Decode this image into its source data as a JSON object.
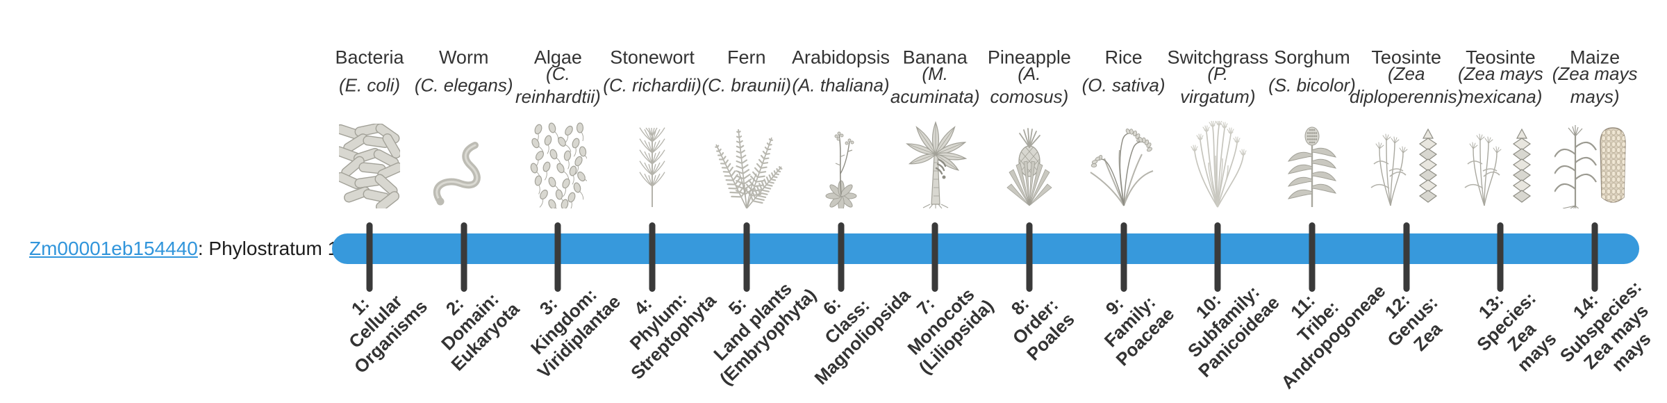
{
  "gene": {
    "id": "Zm00001eb154440",
    "suffix": ": Phylostratum 1"
  },
  "timeline": {
    "bar_color": "#3799DC",
    "tick_color": "#3A3A3A",
    "highlighted_phylostratum": "Phylostratum 1"
  },
  "columns": [
    {
      "common": "Bacteria",
      "scientific": "(E. coli)",
      "icon": "bacteria",
      "stratum": "1:\nCellular\nOrganisms"
    },
    {
      "common": "Worm",
      "scientific": "(C. elegans)",
      "icon": "worm",
      "stratum": "2:\nDomain:\nEukaryota"
    },
    {
      "common": "Algae",
      "scientific": "(C.\nreinhardtii)",
      "icon": "algae",
      "stratum": "3:\nKingdom:\nViridiplantae"
    },
    {
      "common": "Stonewort",
      "scientific": "(C. richardii)",
      "icon": "stonewort",
      "stratum": "4:\nPhylum:\nStreptophyta"
    },
    {
      "common": "Fern",
      "scientific": "(C. braunii)",
      "icon": "fern",
      "stratum": "5:\nLand plants\n(Embryophyta)"
    },
    {
      "common": "Arabidopsis",
      "scientific": "(A. thaliana)",
      "icon": "arabidopsis",
      "stratum": "6:\nClass:\nMagnoliopsida"
    },
    {
      "common": "Banana",
      "scientific": "(M.\nacuminata)",
      "icon": "banana",
      "stratum": "7:\nMonocots\n(Liliopsida)"
    },
    {
      "common": "Pineapple",
      "scientific": "(A.\ncomosus)",
      "icon": "pineapple",
      "stratum": "8:\nOrder:\nPoales"
    },
    {
      "common": "Rice",
      "scientific": "(O. sativa)",
      "icon": "rice",
      "stratum": "9:\nFamily:\nPoaceae"
    },
    {
      "common": "Switchgrass",
      "scientific": "(P.\nvirgatum)",
      "icon": "switchgrass",
      "stratum": "10:\nSubfamily:\nPanicoideae"
    },
    {
      "common": "Sorghum",
      "scientific": "(S. bicolor)",
      "icon": "sorghum",
      "stratum": "11:\nTribe:\nAndropogoneae"
    },
    {
      "common": "Teosinte",
      "scientific": "(Zea\ndiploperennis)",
      "icon": "teosinte-diploperennis",
      "stratum": "12:\nGenus:\nZea"
    },
    {
      "common": "Teosinte",
      "scientific": "(Zea mays\nmexicana)",
      "icon": "teosinte-mexicana",
      "stratum": "13:\nSpecies:\nZea\nmays"
    },
    {
      "common": "Maize",
      "scientific": "(Zea mays\nmays)",
      "icon": "maize",
      "stratum": "14:\nSubspecies:\nZea mays\nmays"
    }
  ]
}
